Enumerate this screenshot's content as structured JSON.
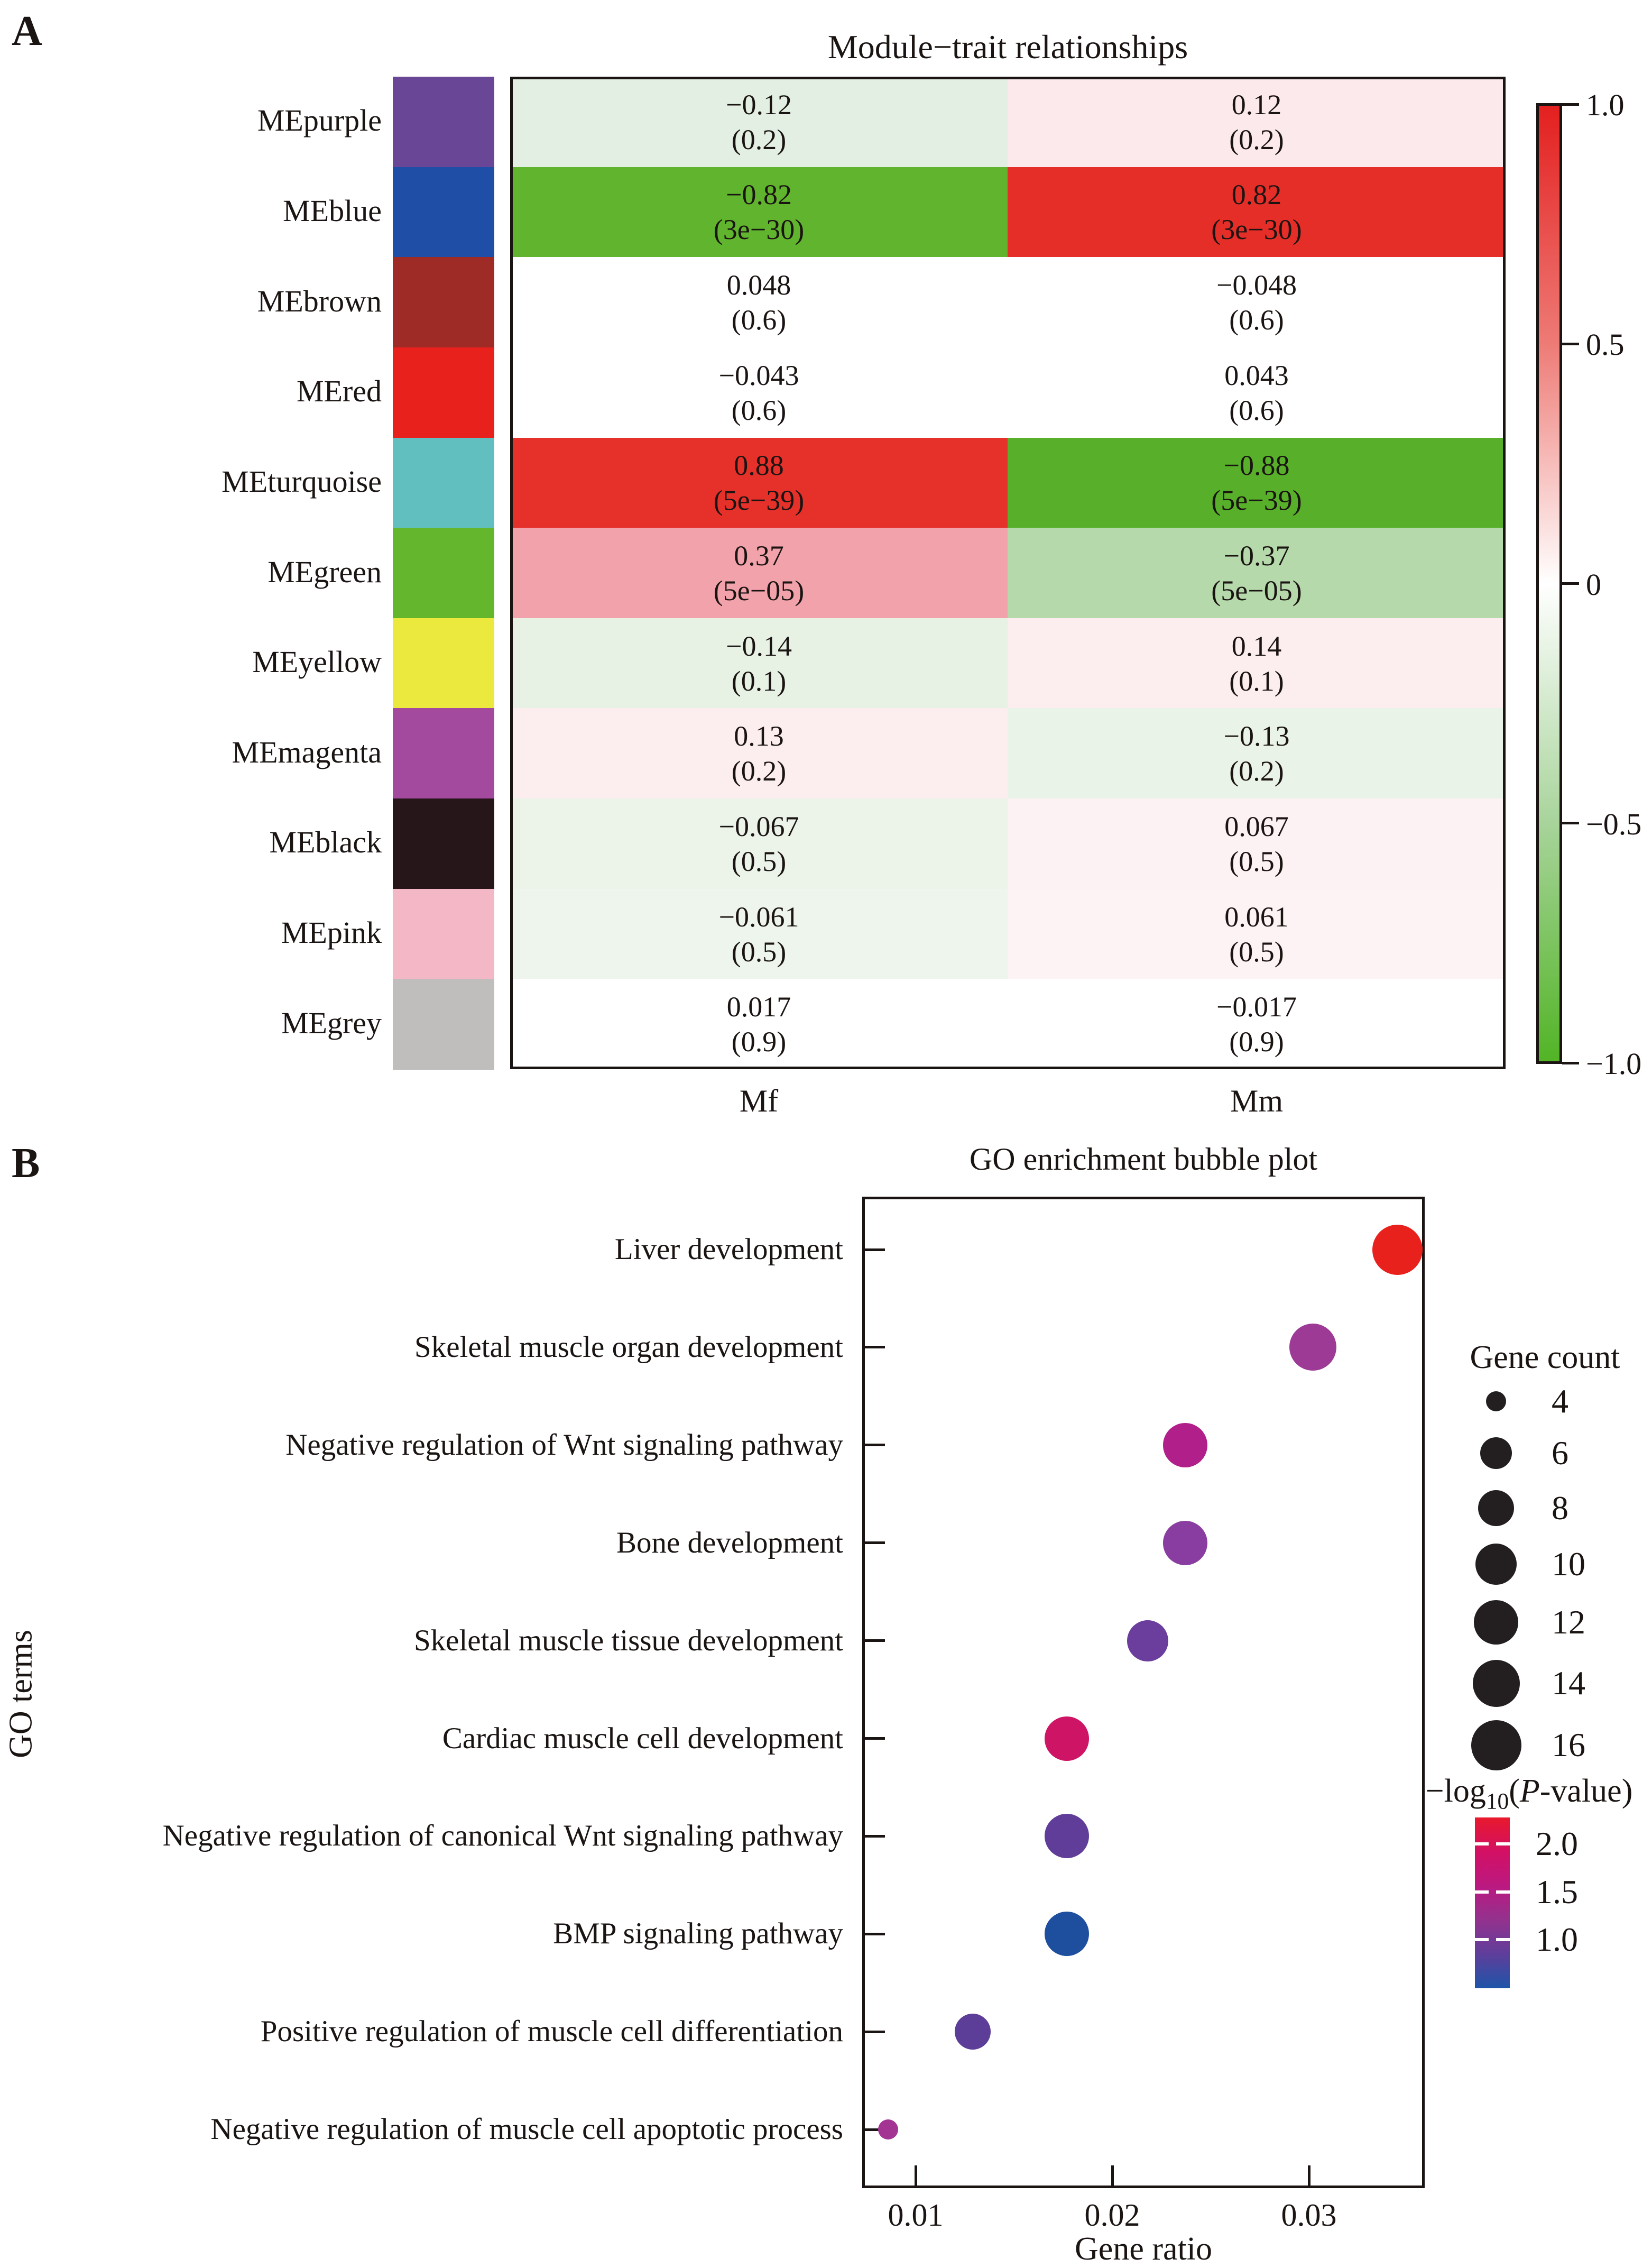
{
  "figure": {
    "panel_a_label": "A",
    "panel_b_label": "B"
  },
  "panel_a": {
    "title": "Module−trait relationships",
    "column_labels": [
      "Mf",
      "Mm"
    ],
    "colorbar_ticks": [
      "1.0",
      "0.5",
      "0",
      "−0.5",
      "−1.0"
    ],
    "colorbar_top_color": "#e3201f",
    "colorbar_bottom_color": "#52b426",
    "rows": [
      {
        "module": "MEpurple",
        "swatch": "#6a4796",
        "cells": [
          {
            "value": "−0.12",
            "p": "(0.2)",
            "bg": "#e3efe3"
          },
          {
            "value": "0.12",
            "p": "(0.2)",
            "bg": "#fbe9ec"
          }
        ]
      },
      {
        "module": "MEblue",
        "swatch": "#1f4ea6",
        "cells": [
          {
            "value": "−0.82",
            "p": "(3e−30)",
            "bg": "#60b42e"
          },
          {
            "value": "0.82",
            "p": "(3e−30)",
            "bg": "#e62e29"
          }
        ]
      },
      {
        "module": "MEbrown",
        "swatch": "#9e2b25",
        "cells": [
          {
            "value": "0.048",
            "p": "(0.6)",
            "bg": "#ffffff"
          },
          {
            "value": "−0.048",
            "p": "(0.6)",
            "bg": "#ffffff"
          }
        ]
      },
      {
        "module": "MEred",
        "swatch": "#e8211c",
        "cells": [
          {
            "value": "−0.043",
            "p": "(0.6)",
            "bg": "#ffffff"
          },
          {
            "value": "0.043",
            "p": "(0.6)",
            "bg": "#ffffff"
          }
        ]
      },
      {
        "module": "MEturquoise",
        "swatch": "#62bfbf",
        "cells": [
          {
            "value": "0.88",
            "p": "(5e−39)",
            "bg": "#e6302a"
          },
          {
            "value": "−0.88",
            "p": "(5e−39)",
            "bg": "#58b02a"
          }
        ]
      },
      {
        "module": "MEgreen",
        "swatch": "#64b72d",
        "cells": [
          {
            "value": "0.37",
            "p": "(5e−05)",
            "bg": "#f2a2ab"
          },
          {
            "value": "−0.37",
            "p": "(5e−05)",
            "bg": "#b5d9ab"
          }
        ]
      },
      {
        "module": "MEyellow",
        "swatch": "#ece93e",
        "cells": [
          {
            "value": "−0.14",
            "p": "(0.1)",
            "bg": "#e7f2e5"
          },
          {
            "value": "0.14",
            "p": "(0.1)",
            "bg": "#fcedef"
          }
        ]
      },
      {
        "module": "MEmagenta",
        "swatch": "#a44a9e",
        "cells": [
          {
            "value": "0.13",
            "p": "(0.2)",
            "bg": "#fcedef"
          },
          {
            "value": "−0.13",
            "p": "(0.2)",
            "bg": "#eaf3e7"
          }
        ]
      },
      {
        "module": "MEblack",
        "swatch": "#261619",
        "cells": [
          {
            "value": "−0.067",
            "p": "(0.5)",
            "bg": "#ecf4ea"
          },
          {
            "value": "0.067",
            "p": "(0.5)",
            "bg": "#fdf2f3"
          }
        ]
      },
      {
        "module": "MEpink",
        "swatch": "#f4b7c6",
        "cells": [
          {
            "value": "−0.061",
            "p": "(0.5)",
            "bg": "#eef5ec"
          },
          {
            "value": "0.061",
            "p": "(0.5)",
            "bg": "#fdf3f4"
          }
        ]
      },
      {
        "module": "MEgrey",
        "swatch": "#c0bdbd",
        "cells": [
          {
            "value": "0.017",
            "p": "(0.9)",
            "bg": "#ffffff"
          },
          {
            "value": "−0.017",
            "p": "(0.9)",
            "bg": "#ffffff"
          }
        ]
      }
    ]
  },
  "panel_b": {
    "title": "GO enrichment bubble plot",
    "xlabel": "Gene ratio",
    "ylabel": "GO terms",
    "x_ticks": [
      "0.01",
      "0.02",
      "0.03"
    ],
    "terms": [
      "Liver development",
      "Skeletal muscle organ development",
      "Negative regulation of Wnt signaling pathway",
      "Bone development",
      "Skeletal muscle tissue development",
      "Cardiac muscle cell development",
      "Negative regulation of canonical Wnt signaling pathway",
      "BMP signaling pathway",
      "Positive regulation of muscle cell differentiation",
      "Negative regulation of muscle cell apoptotic process"
    ],
    "gene_count_legend": {
      "title": "Gene count",
      "items": [
        "4",
        "6",
        "8",
        "10",
        "12",
        "14",
        "16"
      ]
    },
    "pvalue_legend": {
      "title_parts": {
        "prefix": "−log",
        "sub": "10",
        "open": "(",
        "italic": "P",
        "suffix": "-value)"
      },
      "ticks": [
        "2.0",
        "1.5",
        "1.0"
      ],
      "gradient": [
        "#e8192c",
        "#d31064",
        "#bb1980",
        "#93328e",
        "#5f3e9b",
        "#1d55a8"
      ]
    }
  },
  "chart_data": [
    {
      "type": "heatmap",
      "title": "Module−trait relationships",
      "columns": [
        "Mf",
        "Mm"
      ],
      "rows": [
        "MEpurple",
        "MEblue",
        "MEbrown",
        "MEred",
        "MEturquoise",
        "MEgreen",
        "MEyellow",
        "MEmagenta",
        "MEblack",
        "MEpink",
        "MEgrey"
      ],
      "values": [
        [
          -0.12,
          0.12
        ],
        [
          -0.82,
          0.82
        ],
        [
          0.048,
          -0.048
        ],
        [
          -0.043,
          0.043
        ],
        [
          0.88,
          -0.88
        ],
        [
          0.37,
          -0.37
        ],
        [
          -0.14,
          0.14
        ],
        [
          0.13,
          -0.13
        ],
        [
          -0.067,
          0.067
        ],
        [
          -0.061,
          0.061
        ],
        [
          0.017,
          -0.017
        ]
      ],
      "p_values": [
        [
          0.2,
          0.2
        ],
        [
          3e-30,
          3e-30
        ],
        [
          0.6,
          0.6
        ],
        [
          0.6,
          0.6
        ],
        [
          5e-39,
          5e-39
        ],
        [
          5e-05,
          5e-05
        ],
        [
          0.1,
          0.1
        ],
        [
          0.2,
          0.2
        ],
        [
          0.5,
          0.5
        ],
        [
          0.5,
          0.5
        ],
        [
          0.9,
          0.9
        ]
      ],
      "colorbar_range": [
        -1,
        1
      ],
      "colorbar_ticks": [
        1.0,
        0.5,
        0,
        -0.5,
        -1.0
      ]
    },
    {
      "type": "scatter",
      "title": "GO enrichment bubble plot",
      "xlabel": "Gene ratio",
      "ylabel": "GO terms",
      "x_ticks": [
        0.01,
        0.02,
        0.03
      ],
      "xlim": [
        0.0073,
        0.0359
      ],
      "size_legend": {
        "title": "Gene count",
        "values": [
          4,
          6,
          8,
          10,
          12,
          14,
          16
        ]
      },
      "color_legend": {
        "title": "−log10(P-value)",
        "ticks": [
          2.0,
          1.5,
          1.0
        ]
      },
      "points": [
        {
          "term": "Liver development",
          "gene_ratio": 0.0345,
          "gene_count": 16,
          "neg_log10_p": 2.2,
          "color": "#e8211c"
        },
        {
          "term": "Skeletal muscle organ development",
          "gene_ratio": 0.0302,
          "gene_count": 14,
          "neg_log10_p": 1.3,
          "color": "#9c3a96"
        },
        {
          "term": "Negative regulation of Wnt signaling pathway",
          "gene_ratio": 0.0237,
          "gene_count": 12,
          "neg_log10_p": 1.6,
          "color": "#b01f8a"
        },
        {
          "term": "Bone development",
          "gene_ratio": 0.0237,
          "gene_count": 12,
          "neg_log10_p": 1.2,
          "color": "#8a3da1"
        },
        {
          "term": "Skeletal muscle tissue development",
          "gene_ratio": 0.0218,
          "gene_count": 10,
          "neg_log10_p": 1.1,
          "color": "#6b3e9e"
        },
        {
          "term": "Cardiac muscle cell development",
          "gene_ratio": 0.0177,
          "gene_count": 12,
          "neg_log10_p": 1.9,
          "color": "#ce1465"
        },
        {
          "term": "Negative regulation of canonical Wnt signaling pathway",
          "gene_ratio": 0.0177,
          "gene_count": 12,
          "neg_log10_p": 1.0,
          "color": "#5f3d99"
        },
        {
          "term": "BMP signaling pathway",
          "gene_ratio": 0.0177,
          "gene_count": 12,
          "neg_log10_p": 0.6,
          "color": "#1d4f9e"
        },
        {
          "term": "Positive regulation of muscle cell differentiation",
          "gene_ratio": 0.0129,
          "gene_count": 8,
          "neg_log10_p": 1.0,
          "color": "#5c3d97"
        },
        {
          "term": "Negative regulation of muscle cell apoptotic process",
          "gene_ratio": 0.0086,
          "gene_count": 4,
          "neg_log10_p": 1.4,
          "color": "#a33493"
        }
      ]
    }
  ]
}
